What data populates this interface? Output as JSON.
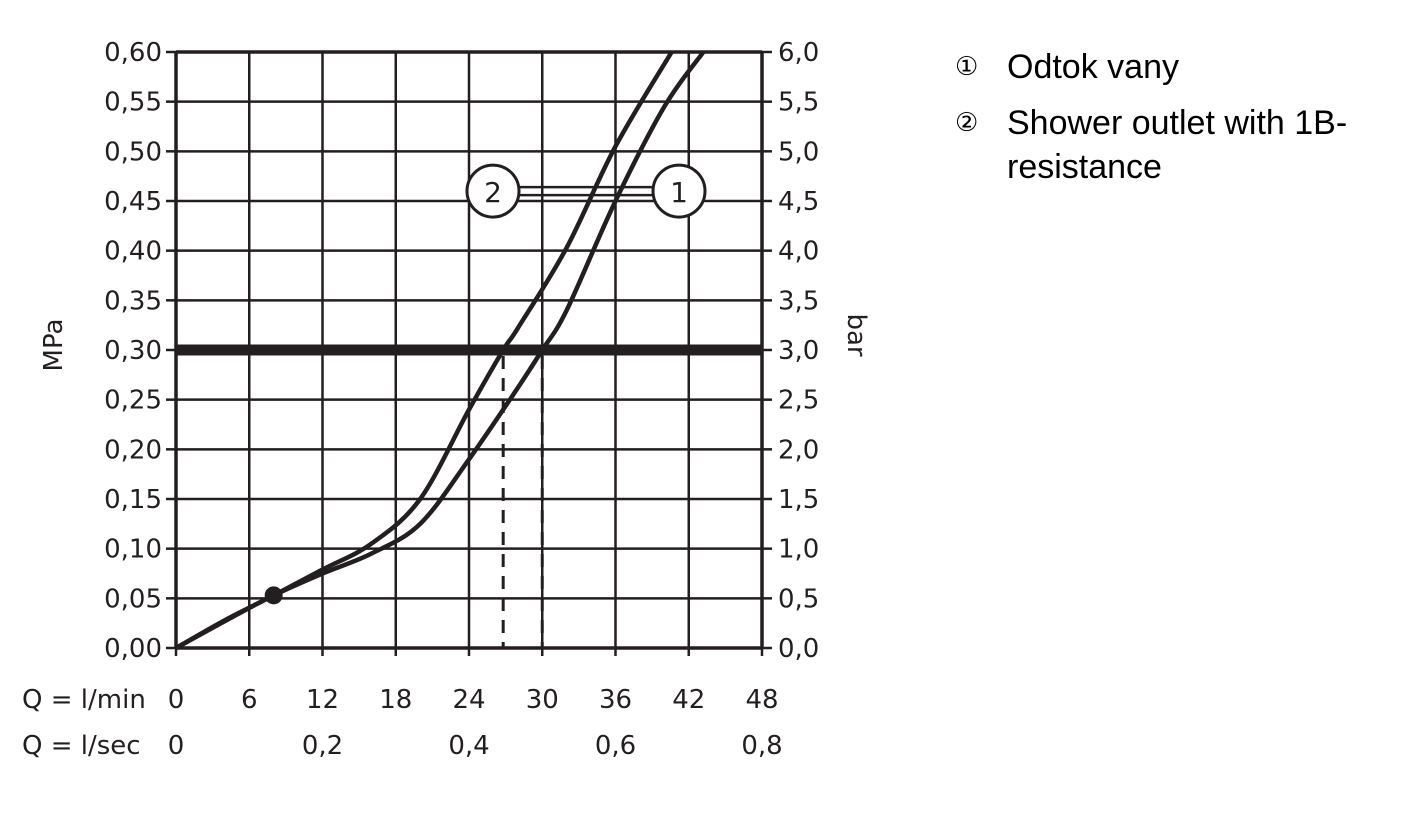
{
  "chart_data": {
    "type": "line",
    "xlabel": "Q = l/min",
    "xlabel2": "Q = l/sec",
    "ylabel": "MPa",
    "ylabel_right": "bar",
    "xlim": [
      0,
      48
    ],
    "ylim": [
      0,
      0.6
    ],
    "grid": true,
    "x_ticks": [
      "0",
      "6",
      "12",
      "18",
      "24",
      "30",
      "36",
      "42",
      "48"
    ],
    "x_ticks_secondary": [
      {
        "value": 0,
        "label": "0"
      },
      {
        "value": 12,
        "label": "0,2"
      },
      {
        "value": 24,
        "label": "0,4"
      },
      {
        "value": 36,
        "label": "0,6"
      },
      {
        "value": 48,
        "label": "0,8"
      }
    ],
    "y_ticks": [
      "0,00",
      "0,05",
      "0,10",
      "0,15",
      "0,20",
      "0,25",
      "0,30",
      "0,35",
      "0,40",
      "0,45",
      "0,50",
      "0,55",
      "0,60"
    ],
    "y_ticks_right": [
      "0,0",
      "0,5",
      "1,0",
      "1,5",
      "2,0",
      "2,5",
      "3,0",
      "3,5",
      "4,0",
      "4,5",
      "5,0",
      "5,5",
      "6,0"
    ],
    "reference_line": {
      "y": 0.3
    },
    "intersections": [
      {
        "series": "2",
        "x": 26.8,
        "y": 0.3
      },
      {
        "series": "1",
        "x": 30,
        "y": 0.3
      }
    ],
    "start_point": {
      "x": 8,
      "y": 0.053
    },
    "series": [
      {
        "name": "1",
        "x": [
          0,
          4,
          8,
          12,
          16,
          20,
          24,
          28,
          30,
          32,
          36,
          40,
          43.2
        ],
        "y": [
          0,
          0.027,
          0.053,
          0.075,
          0.095,
          0.125,
          0.19,
          0.262,
          0.3,
          0.34,
          0.45,
          0.545,
          0.6
        ]
      },
      {
        "name": "2",
        "x": [
          0,
          4,
          8,
          12,
          16,
          20,
          24,
          26.8,
          28,
          32,
          36,
          40.6
        ],
        "y": [
          0,
          0.028,
          0.053,
          0.079,
          0.105,
          0.15,
          0.24,
          0.3,
          0.322,
          0.403,
          0.505,
          0.6
        ]
      }
    ],
    "series_markers": [
      {
        "label": "2",
        "x": 26.8,
        "y": 0.3
      },
      {
        "label": "1",
        "x": 30,
        "y": 0.3
      }
    ]
  },
  "legend": {
    "items": [
      {
        "num": "①",
        "text": "Odtok vany"
      },
      {
        "num": "②",
        "text": "Shower outlet with 1B-resistance"
      }
    ]
  },
  "colors": {
    "ink": "#231f20"
  }
}
